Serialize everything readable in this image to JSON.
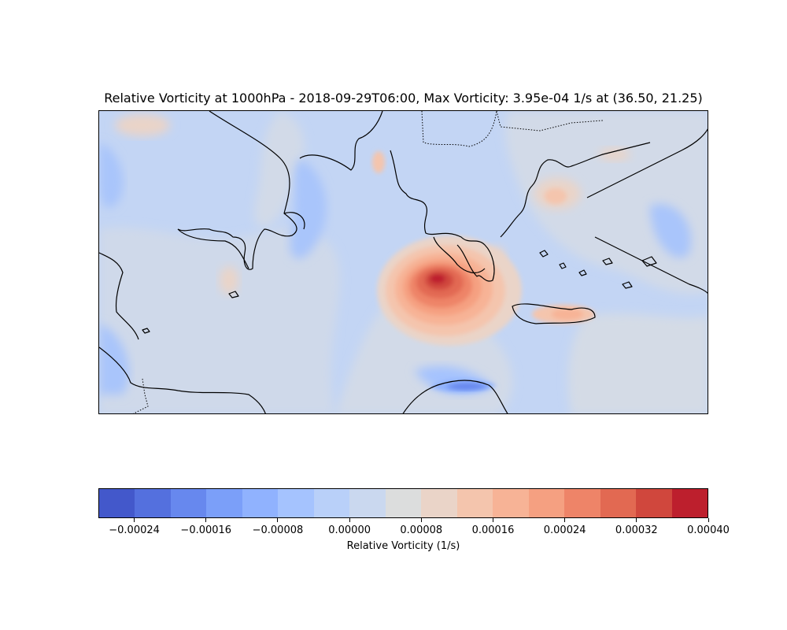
{
  "title": "Relative Vorticity at 1000hPa - 2018-09-29T06:00, Max Vorticity: 3.95e-04 1/s at (36.50, 21.25)",
  "colorbar": {
    "label": "Relative Vorticity (1/s)",
    "levels": [
      -0.00028,
      -0.00024,
      -0.0002,
      -0.00016,
      -0.00012,
      -8e-05,
      -4e-05,
      0.0,
      4e-05,
      8e-05,
      0.00012,
      0.00016,
      0.0002,
      0.00024,
      0.00028,
      0.00032,
      0.00036,
      0.0004
    ],
    "colors": [
      "#4358cb",
      "#5470de",
      "#6788ee",
      "#7b9ff9",
      "#90b2fe",
      "#a5c3fe",
      "#b9d0f9",
      "#cad8ef",
      "#dcdddd",
      "#ead4c8",
      "#f4c5ad",
      "#f7b396",
      "#f5a081",
      "#ee8468",
      "#e26952",
      "#d0473d",
      "#bd1f2d"
    ],
    "tick_labels": [
      "−0.00024",
      "−0.00016",
      "−0.00008",
      "0.00000",
      "0.00008",
      "0.00016",
      "0.00024",
      "0.00032",
      "0.00040"
    ],
    "tick_values": [
      -0.00024,
      -0.00016,
      -8e-05,
      0.0,
      8e-05,
      0.00016,
      0.00024,
      0.00032,
      0.0004
    ]
  },
  "map": {
    "max_vorticity_location": "36.50, 21.25",
    "base_color": "#c3d5f4",
    "coastline_color": "#000000"
  }
}
